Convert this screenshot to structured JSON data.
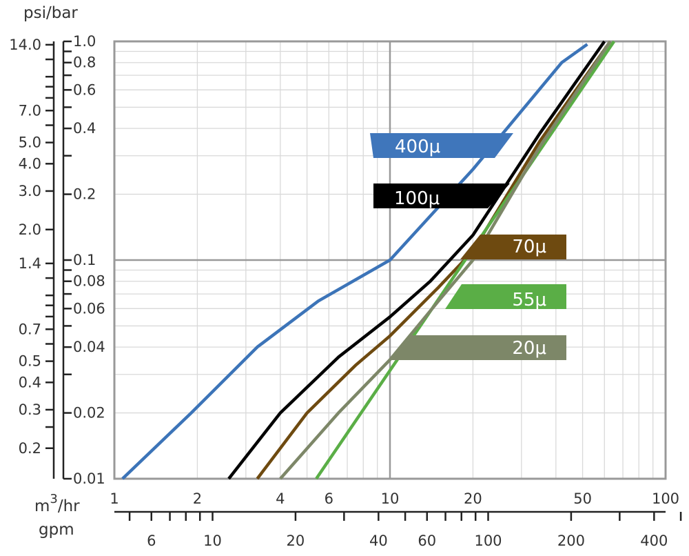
{
  "chart_data": {
    "type": "line",
    "title": "",
    "x_scale": "log",
    "y_scale": "log",
    "x_m3hr": {
      "label_base": "m",
      "label_sup": "3",
      "label_rest": "/hr",
      "range": [
        1,
        100
      ],
      "ticks": [
        {
          "value": 1,
          "label": "1"
        },
        {
          "value": 2,
          "label": "2"
        },
        {
          "value": 4,
          "label": "4"
        },
        {
          "value": 6,
          "label": "6"
        },
        {
          "value": 10,
          "label": "10"
        },
        {
          "value": 20,
          "label": "20"
        },
        {
          "value": 50,
          "label": "50"
        },
        {
          "value": 100,
          "label": "100"
        }
      ]
    },
    "x_gpm": {
      "label": "gpm",
      "ticks": [
        {
          "value": 6,
          "label": "6"
        },
        {
          "value": 10,
          "label": "10"
        },
        {
          "value": 20,
          "label": "20"
        },
        {
          "value": 40,
          "label": "40"
        },
        {
          "value": 60,
          "label": "60"
        },
        {
          "value": 100,
          "label": "100"
        },
        {
          "value": 200,
          "label": "200"
        },
        {
          "value": 400,
          "label": "400"
        }
      ]
    },
    "y_bar": {
      "range": [
        0.01,
        1.0
      ],
      "ticks": [
        {
          "value": 1.0,
          "label": "1.0"
        },
        {
          "value": 0.8,
          "label": "0.8"
        },
        {
          "value": 0.6,
          "label": "0.6"
        },
        {
          "value": 0.4,
          "label": "0.4"
        },
        {
          "value": 0.2,
          "label": "0.2"
        },
        {
          "value": 0.1,
          "label": "0.1"
        },
        {
          "value": 0.08,
          "label": "0.08"
        },
        {
          "value": 0.06,
          "label": "0.06"
        },
        {
          "value": 0.04,
          "label": "0.04"
        },
        {
          "value": 0.02,
          "label": "0.02"
        },
        {
          "value": 0.01,
          "label": "0.01"
        }
      ]
    },
    "y_psi": {
      "label": "psi/bar",
      "ticks": [
        {
          "value": 14.0,
          "label": "14.0"
        },
        {
          "value": 7.0,
          "label": "7.0"
        },
        {
          "value": 5.0,
          "label": "5.0"
        },
        {
          "value": 4.0,
          "label": "4.0"
        },
        {
          "value": 3.0,
          "label": "3.0"
        },
        {
          "value": 2.0,
          "label": "2.0"
        },
        {
          "value": 1.4,
          "label": "1.4"
        },
        {
          "value": 0.7,
          "label": "0.7"
        },
        {
          "value": 0.5,
          "label": "0.5"
        },
        {
          "value": 0.4,
          "label": "0.4"
        },
        {
          "value": 0.3,
          "label": "0.3"
        },
        {
          "value": 0.2,
          "label": "0.2"
        }
      ]
    },
    "series": [
      {
        "name": "400μ",
        "color": "#3c74b8",
        "label_color": "#3f76bb",
        "points": [
          [
            1.07,
            0.01
          ],
          [
            1.9,
            0.02
          ],
          [
            3.3,
            0.04
          ],
          [
            5.5,
            0.065
          ],
          [
            10,
            0.1
          ],
          [
            20,
            0.26
          ],
          [
            42,
            0.8
          ],
          [
            52,
            0.97
          ]
        ]
      },
      {
        "name": "100μ",
        "color": "#000000",
        "label_color": "#000000",
        "points": [
          [
            2.6,
            0.01
          ],
          [
            4.0,
            0.02
          ],
          [
            6.5,
            0.036
          ],
          [
            10,
            0.055
          ],
          [
            14,
            0.08
          ],
          [
            20,
            0.13
          ],
          [
            35,
            0.38
          ],
          [
            60,
            1.0
          ]
        ]
      },
      {
        "name": "70μ",
        "color": "#6e4a10",
        "label_color": "#6e4a10",
        "points": [
          [
            3.3,
            0.01
          ],
          [
            5.0,
            0.02
          ],
          [
            7.5,
            0.033
          ],
          [
            10,
            0.045
          ],
          [
            15,
            0.075
          ],
          [
            20,
            0.11
          ],
          [
            35,
            0.35
          ],
          [
            63,
            1.0
          ]
        ]
      },
      {
        "name": "55μ",
        "color": "#5aae46",
        "label_color": "#5aae46",
        "points": [
          [
            5.4,
            0.01
          ],
          [
            65,
            1.0
          ]
        ]
      },
      {
        "name": "20μ",
        "color": "#7d8768",
        "label_color": "#7d8768",
        "points": [
          [
            4.0,
            0.01
          ],
          [
            6.5,
            0.02
          ],
          [
            10,
            0.035
          ],
          [
            15,
            0.065
          ],
          [
            20,
            0.1
          ],
          [
            35,
            0.33
          ],
          [
            63,
            1.0
          ]
        ]
      }
    ]
  }
}
